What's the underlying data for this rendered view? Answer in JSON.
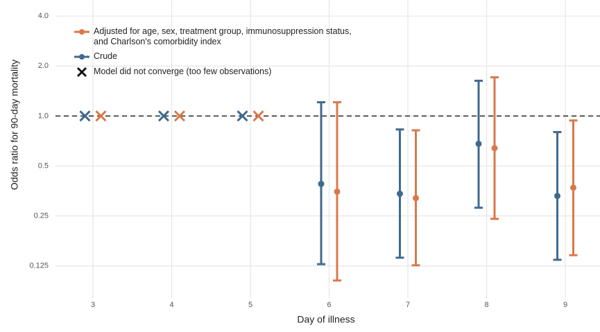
{
  "chart_data": {
    "type": "errorbar",
    "x_label": "Day of illness",
    "y_label": "Odds ratio for 90-day mortality",
    "categories": [
      "3",
      "4",
      "5",
      "6",
      "7",
      "8",
      "9"
    ],
    "log_scale": true,
    "grid": true,
    "reference_line": 1,
    "ylim": [
      0.08,
      5
    ],
    "yticks": [
      0.125,
      0.25,
      0.5,
      {
        "value": 1,
        "label": "1.0"
      },
      {
        "value": 2,
        "label": "2.0"
      },
      {
        "value": 4,
        "label": "4.0"
      }
    ],
    "nonconverged_label": "Model did not converge (too few observations)",
    "series": [
      {
        "name": "Adjusted for age, sex, treatment group, immunosuppression status, and Charlson's comorbidity index",
        "color": "#d9794b",
        "converged": [
          false,
          false,
          false,
          true,
          true,
          true,
          true
        ],
        "values": [
          null,
          null,
          null,
          0.35,
          0.32,
          0.64,
          0.37
        ],
        "lower": [
          null,
          null,
          null,
          0.102,
          0.126,
          0.24,
          0.145
        ],
        "upper": [
          null,
          null,
          null,
          1.21,
          0.82,
          1.71,
          0.94
        ]
      },
      {
        "name": "Crude",
        "color": "#3f6a8d",
        "converged": [
          false,
          false,
          false,
          true,
          true,
          true,
          true
        ],
        "values": [
          null,
          null,
          null,
          0.39,
          0.34,
          0.68,
          0.33
        ],
        "lower": [
          null,
          null,
          null,
          0.128,
          0.14,
          0.28,
          0.136
        ],
        "upper": [
          null,
          null,
          null,
          1.21,
          0.83,
          1.63,
          0.8
        ]
      }
    ]
  }
}
